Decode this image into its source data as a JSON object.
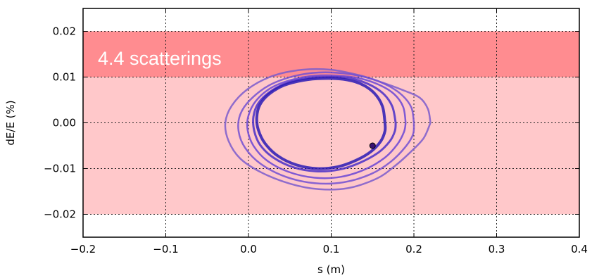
{
  "chart_data": {
    "type": "line",
    "xlabel": "s (m)",
    "ylabel": "dE/E (%)",
    "xlim": [
      -0.2,
      0.4
    ],
    "ylim": [
      -0.025,
      0.025
    ],
    "xticks": [
      -0.2,
      -0.1,
      0.0,
      0.1,
      0.2,
      0.3,
      0.4
    ],
    "xtick_labels": [
      "−0.2",
      "−0.1",
      "0.0",
      "0.1",
      "0.2",
      "0.3",
      "0.4"
    ],
    "yticks": [
      -0.02,
      -0.01,
      0.0,
      0.01,
      0.02
    ],
    "ytick_labels": [
      "−0.02",
      "−0.01",
      "0.00",
      "0.01",
      "0.02"
    ],
    "grid": true,
    "bands": [
      {
        "y0": -0.02,
        "y1": 0.01,
        "color": "#ffc8ca"
      },
      {
        "y0": 0.01,
        "y1": 0.02,
        "color": "#ff8c90"
      }
    ],
    "annotation": "4.4 scatterings",
    "series": [
      {
        "color": "#7b5ccc",
        "width": 2.5,
        "values": [
          [
            0.22,
            0.0
          ],
          [
            0.217,
            0.003
          ],
          [
            0.207,
            0.0055
          ],
          [
            0.186,
            0.0072
          ],
          [
            0.162,
            0.0088
          ],
          [
            0.134,
            0.0104
          ],
          [
            0.1,
            0.0116
          ],
          [
            0.065,
            0.0116
          ],
          [
            0.03,
            0.0103
          ],
          [
            0.0,
            0.0075
          ],
          [
            -0.02,
            0.0038
          ],
          [
            -0.028,
            0.0
          ],
          [
            -0.024,
            -0.004
          ],
          [
            -0.01,
            -0.0078
          ],
          [
            0.015,
            -0.0108
          ],
          [
            0.05,
            -0.0133
          ],
          [
            0.085,
            -0.0145
          ],
          [
            0.12,
            -0.0143
          ],
          [
            0.155,
            -0.0122
          ],
          [
            0.178,
            -0.0093
          ],
          [
            0.197,
            -0.0062
          ],
          [
            0.212,
            -0.0033
          ],
          [
            0.22,
            0.0
          ]
        ]
      },
      {
        "color": "#7350d2",
        "width": 2.5,
        "values": [
          [
            0.2,
            0.0
          ],
          [
            0.197,
            0.0033
          ],
          [
            0.186,
            0.006
          ],
          [
            0.168,
            0.0082
          ],
          [
            0.145,
            0.0098
          ],
          [
            0.115,
            0.0108
          ],
          [
            0.085,
            0.011
          ],
          [
            0.055,
            0.0102
          ],
          [
            0.025,
            0.0082
          ],
          [
            0.002,
            0.005
          ],
          [
            -0.01,
            0.0018
          ],
          [
            -0.012,
            -0.0018
          ],
          [
            -0.004,
            -0.0055
          ],
          [
            0.015,
            -0.009
          ],
          [
            0.045,
            -0.0118
          ],
          [
            0.08,
            -0.0132
          ],
          [
            0.115,
            -0.013
          ],
          [
            0.148,
            -0.0112
          ],
          [
            0.172,
            -0.0085
          ],
          [
            0.19,
            -0.0052
          ],
          [
            0.199,
            -0.0025
          ],
          [
            0.2,
            0.0
          ]
        ]
      },
      {
        "color": "#6a45d5",
        "width": 2.5,
        "values": [
          [
            0.19,
            0.0
          ],
          [
            0.187,
            0.0035
          ],
          [
            0.176,
            0.0063
          ],
          [
            0.158,
            0.0083
          ],
          [
            0.135,
            0.0097
          ],
          [
            0.108,
            0.0103
          ],
          [
            0.08,
            0.0103
          ],
          [
            0.052,
            0.0094
          ],
          [
            0.027,
            0.0076
          ],
          [
            0.009,
            0.0048
          ],
          [
            0.0,
            0.0016
          ],
          [
            -0.001,
            -0.0016
          ],
          [
            0.006,
            -0.005
          ],
          [
            0.022,
            -0.0082
          ],
          [
            0.048,
            -0.0107
          ],
          [
            0.08,
            -0.012
          ],
          [
            0.112,
            -0.0118
          ],
          [
            0.142,
            -0.0101
          ],
          [
            0.165,
            -0.0076
          ],
          [
            0.18,
            -0.0047
          ],
          [
            0.188,
            -0.002
          ],
          [
            0.19,
            0.0
          ]
        ]
      },
      {
        "color": "#4a2fc8",
        "width": 3,
        "values": [
          [
            0.178,
            0.0
          ],
          [
            0.174,
            0.0035
          ],
          [
            0.164,
            0.0062
          ],
          [
            0.148,
            0.0082
          ],
          [
            0.126,
            0.0096
          ],
          [
            0.1,
            0.01
          ],
          [
            0.074,
            0.0098
          ],
          [
            0.048,
            0.0088
          ],
          [
            0.027,
            0.0069
          ],
          [
            0.012,
            0.0043
          ],
          [
            0.006,
            0.0013
          ],
          [
            0.007,
            -0.0018
          ],
          [
            0.014,
            -0.0048
          ],
          [
            0.03,
            -0.0076
          ],
          [
            0.054,
            -0.0097
          ],
          [
            0.082,
            -0.0106
          ],
          [
            0.11,
            -0.0102
          ],
          [
            0.135,
            -0.0087
          ],
          [
            0.157,
            -0.0065
          ],
          [
            0.171,
            -0.004
          ],
          [
            0.177,
            -0.0018
          ],
          [
            0.178,
            0.0
          ]
        ]
      },
      {
        "color": "#2a1ab5",
        "width": 4,
        "values": [
          [
            0.165,
            0.0
          ],
          [
            0.162,
            0.0036
          ],
          [
            0.152,
            0.0065
          ],
          [
            0.136,
            0.0085
          ],
          [
            0.115,
            0.0095
          ],
          [
            0.09,
            0.0097
          ],
          [
            0.066,
            0.0093
          ],
          [
            0.043,
            0.0082
          ],
          [
            0.025,
            0.0063
          ],
          [
            0.014,
            0.004
          ],
          [
            0.01,
            0.0012
          ],
          [
            0.012,
            -0.0016
          ],
          [
            0.02,
            -0.0045
          ],
          [
            0.036,
            -0.0073
          ],
          [
            0.058,
            -0.0092
          ],
          [
            0.083,
            -0.01
          ],
          [
            0.108,
            -0.0096
          ],
          [
            0.13,
            -0.0082
          ],
          [
            0.148,
            -0.0063
          ],
          [
            0.16,
            -0.004
          ],
          [
            0.165,
            -0.0018
          ],
          [
            0.165,
            0.0
          ]
        ]
      }
    ],
    "marker": {
      "x": 0.15,
      "y": -0.005,
      "color": "#3a1270"
    }
  }
}
